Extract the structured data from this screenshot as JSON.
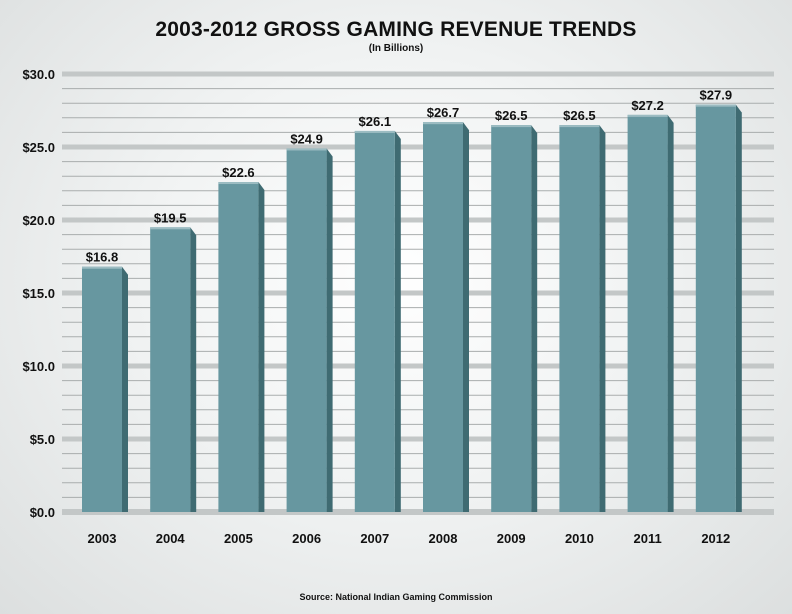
{
  "chart_data": {
    "type": "bar",
    "title": "2003-2012 GROSS GAMING REVENUE TRENDS",
    "subtitle": "(In Billions)",
    "xlabel": "",
    "ylabel": "",
    "categories": [
      "2003",
      "2004",
      "2005",
      "2006",
      "2007",
      "2008",
      "2009",
      "2010",
      "2011",
      "2012"
    ],
    "values": [
      16.8,
      19.5,
      22.6,
      24.9,
      26.1,
      26.7,
      26.5,
      26.5,
      27.2,
      27.9
    ],
    "data_labels": [
      "$16.8",
      "$19.5",
      "$22.6",
      "$24.9",
      "$26.1",
      "$26.7",
      "$26.5",
      "$26.5",
      "$27.2",
      "$27.9"
    ],
    "ylim": [
      0,
      30
    ],
    "yticks": [
      0,
      5,
      10,
      15,
      20,
      25,
      30
    ],
    "ytick_labels": [
      "$0.0",
      "$5.0",
      "$10.0",
      "$15.0",
      "$20.0",
      "$25.0",
      "$30.0"
    ],
    "grid": true,
    "legend": "none",
    "source": "Source: National Indian Gaming Commission",
    "colors": {
      "bar_front": "#6797a0",
      "bar_side": "#3f6b72",
      "bar_top": "#9cbcc2",
      "grid_major": "#c3c7c7",
      "grid_minor": "#a9adad"
    }
  }
}
